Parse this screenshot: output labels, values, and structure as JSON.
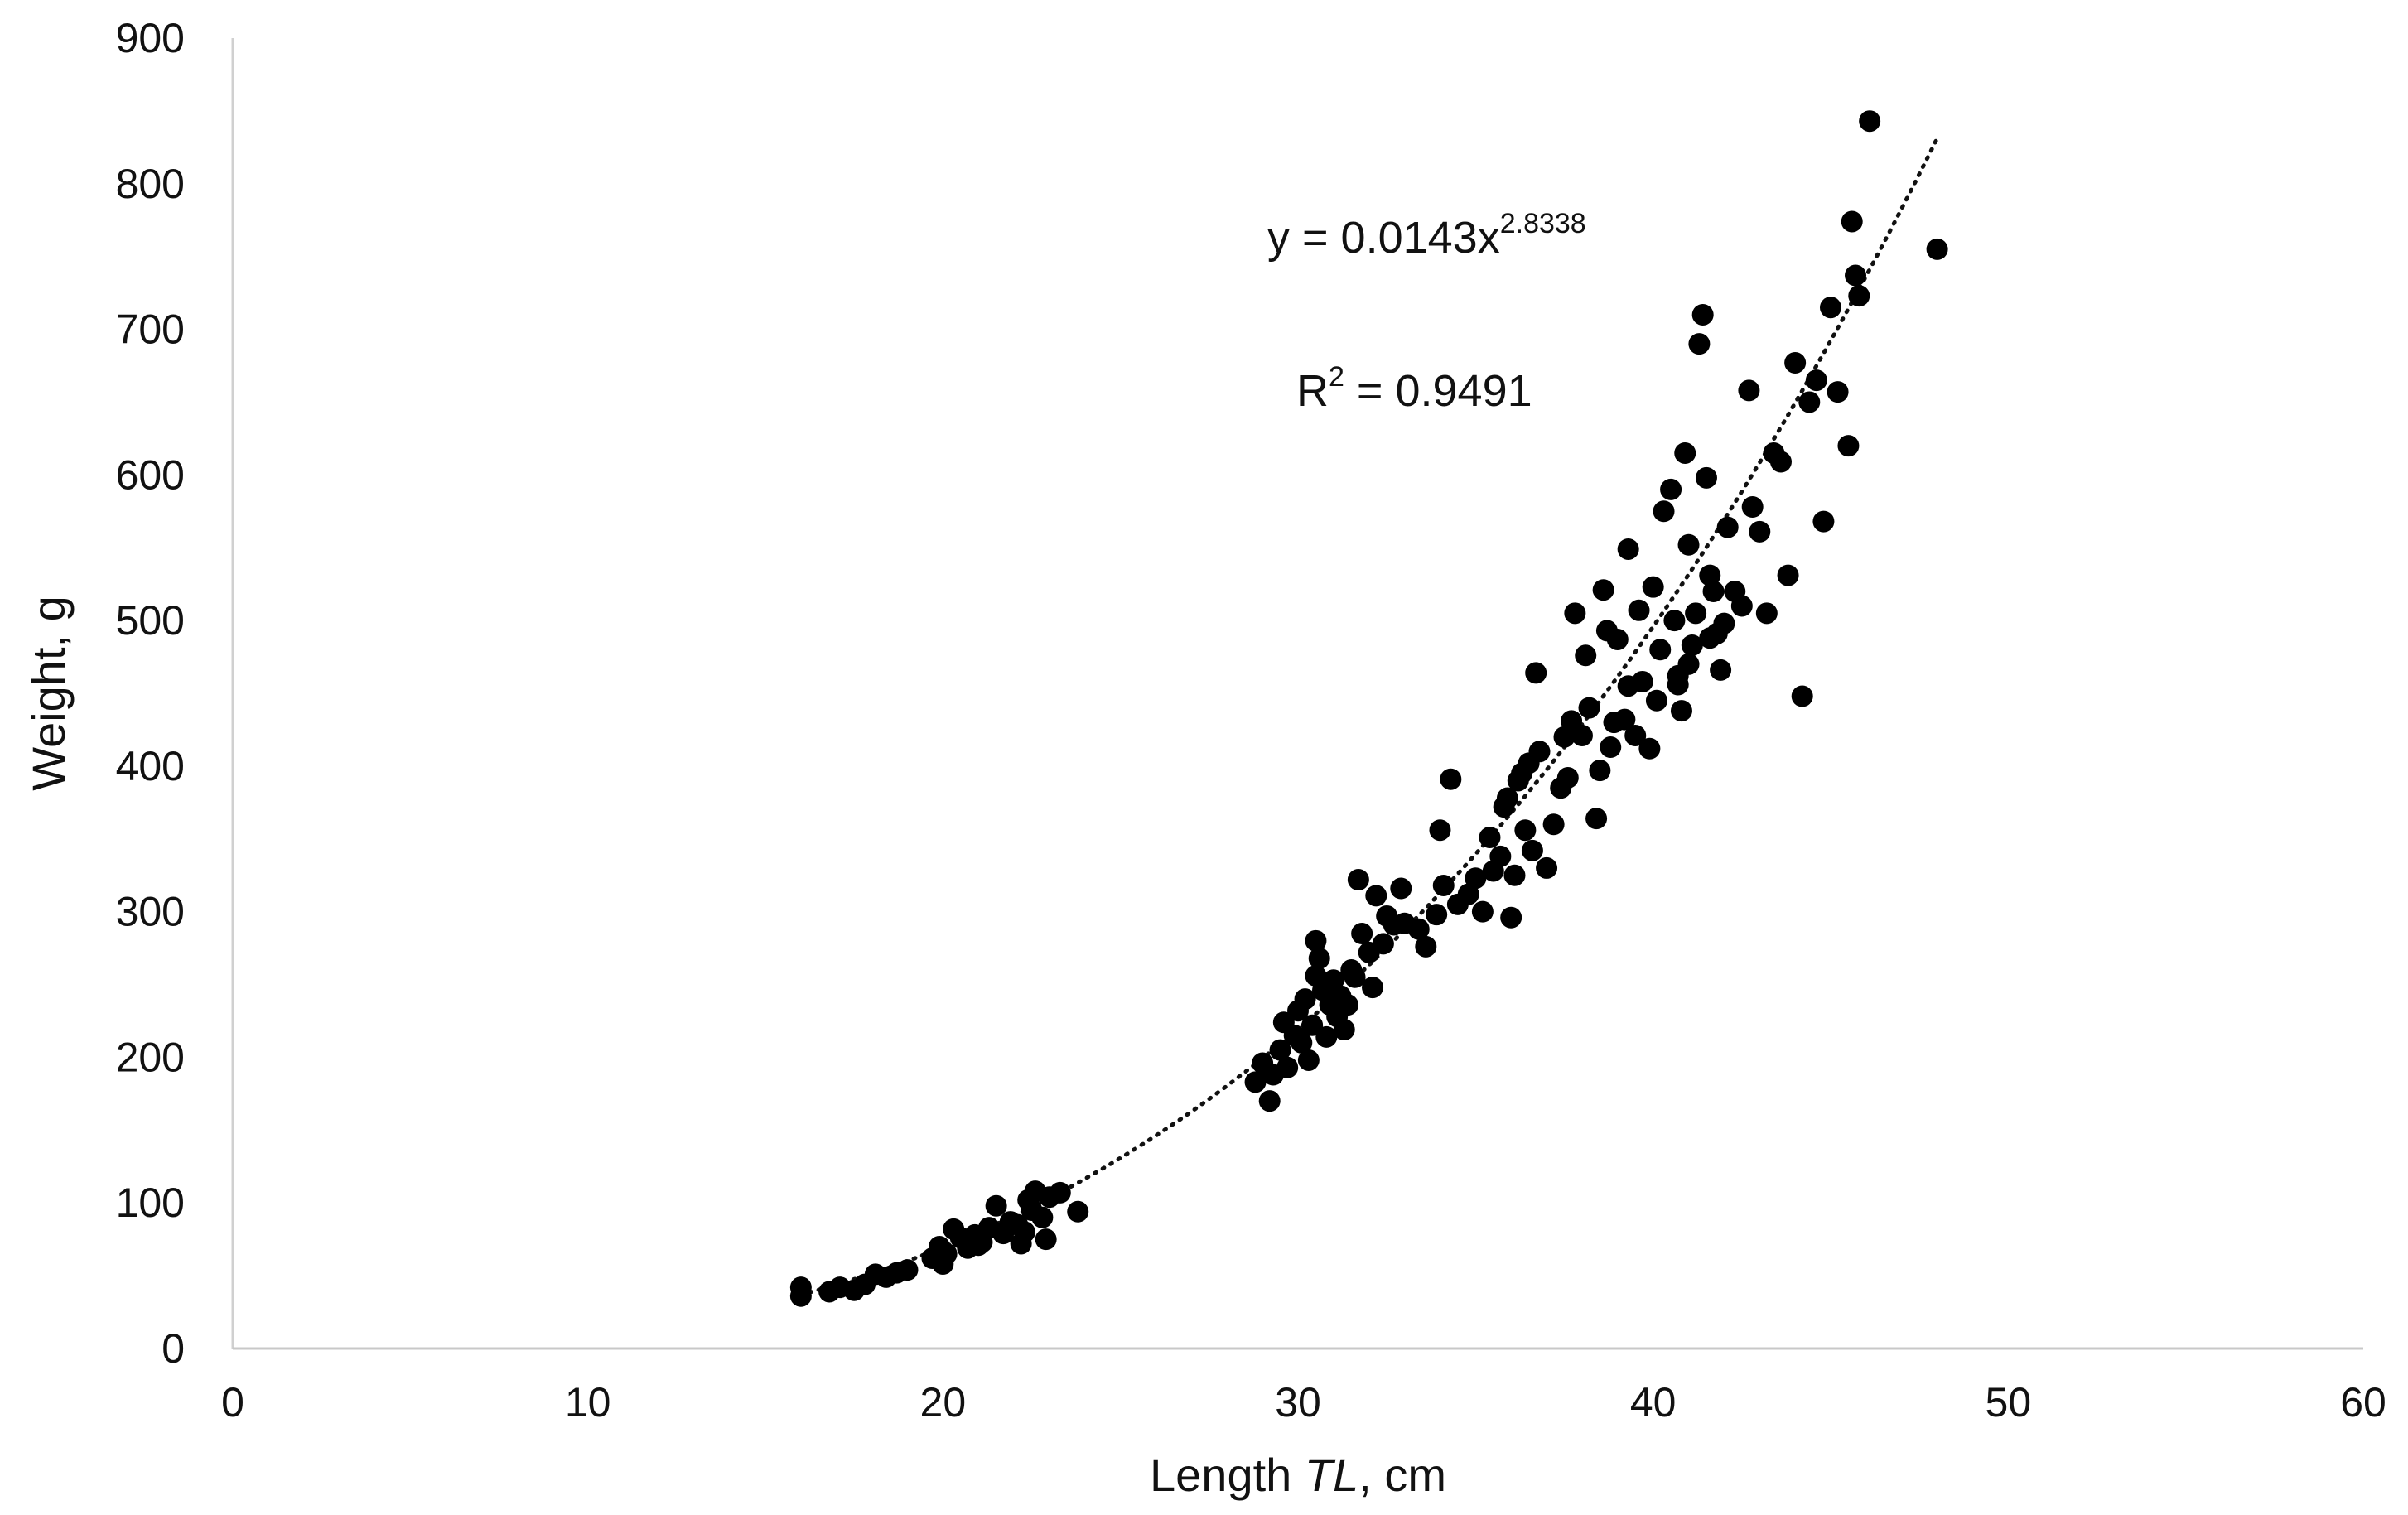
{
  "chart_data": {
    "type": "scatter",
    "title": "",
    "xlabel": {
      "prefix": "Length ",
      "italic": "TL",
      "suffix": ", cm"
    },
    "ylabel": "Weight, g",
    "xlim": [
      0,
      60
    ],
    "ylim": [
      0,
      900
    ],
    "x_ticks": [
      0,
      10,
      20,
      30,
      40,
      50,
      60
    ],
    "y_ticks": [
      0,
      100,
      200,
      300,
      400,
      500,
      600,
      700,
      800,
      900
    ],
    "grid": false,
    "legend": "none",
    "marker_color": "#000000",
    "trendline": {
      "type": "power",
      "a": 0.0143,
      "b": 2.8338,
      "x_range": [
        16,
        48
      ],
      "style": "dotted",
      "equation_prefix": "y = 0.0143x",
      "equation_exponent": "2.8338",
      "r2_prefix": "R",
      "r2_exponent": "2",
      "r2_suffix": " = 0.9491"
    },
    "points": [
      [
        16,
        42
      ],
      [
        16,
        36
      ],
      [
        16.8,
        39
      ],
      [
        17.1,
        42
      ],
      [
        17.5,
        40
      ],
      [
        17.8,
        44
      ],
      [
        18.1,
        51
      ],
      [
        18.4,
        49
      ],
      [
        18.7,
        52
      ],
      [
        19.0,
        54
      ],
      [
        19.7,
        62
      ],
      [
        19.9,
        70
      ],
      [
        20.0,
        58
      ],
      [
        20.1,
        65
      ],
      [
        20.3,
        82
      ],
      [
        20.5,
        76
      ],
      [
        20.7,
        69
      ],
      [
        20.9,
        78
      ],
      [
        21.1,
        73
      ],
      [
        21.3,
        83
      ],
      [
        21.5,
        98
      ],
      [
        21.7,
        79
      ],
      [
        21.9,
        87
      ],
      [
        22.1,
        85
      ],
      [
        22.2,
        72
      ],
      [
        22.4,
        102
      ],
      [
        22.5,
        95
      ],
      [
        22.6,
        108
      ],
      [
        22.8,
        90
      ],
      [
        22.9,
        75
      ],
      [
        23.0,
        104
      ],
      [
        23.3,
        107
      ],
      [
        23.8,
        94
      ],
      [
        22.3,
        80
      ],
      [
        21.0,
        71
      ],
      [
        28.8,
        183
      ],
      [
        29.0,
        196
      ],
      [
        29.2,
        170
      ],
      [
        29.3,
        188
      ],
      [
        29.5,
        205
      ],
      [
        29.6,
        224
      ],
      [
        29.7,
        193
      ],
      [
        29.9,
        215
      ],
      [
        30.0,
        232
      ],
      [
        30.1,
        210
      ],
      [
        30.2,
        240
      ],
      [
        30.3,
        198
      ],
      [
        30.4,
        222
      ],
      [
        30.5,
        256
      ],
      [
        30.5,
        280
      ],
      [
        30.6,
        268
      ],
      [
        30.7,
        246
      ],
      [
        30.8,
        214
      ],
      [
        30.9,
        236
      ],
      [
        31.0,
        253
      ],
      [
        31.1,
        228
      ],
      [
        31.2,
        242
      ],
      [
        31.3,
        219
      ],
      [
        31.4,
        236
      ],
      [
        31.5,
        260
      ],
      [
        31.6,
        255
      ],
      [
        31.7,
        322
      ],
      [
        31.8,
        285
      ],
      [
        32.0,
        272
      ],
      [
        32.1,
        248
      ],
      [
        32.2,
        311
      ],
      [
        32.4,
        278
      ],
      [
        32.5,
        297
      ],
      [
        32.7,
        291
      ],
      [
        32.9,
        316
      ],
      [
        33.0,
        292
      ],
      [
        33.4,
        288
      ],
      [
        33.6,
        276
      ],
      [
        33.9,
        298
      ],
      [
        34.0,
        356
      ],
      [
        34.1,
        318
      ],
      [
        34.3,
        391
      ],
      [
        34.5,
        305
      ],
      [
        34.8,
        312
      ],
      [
        35.0,
        323
      ],
      [
        35.2,
        300
      ],
      [
        35.4,
        351
      ],
      [
        35.5,
        328
      ],
      [
        35.7,
        338
      ],
      [
        35.9,
        378
      ],
      [
        36.0,
        296
      ],
      [
        36.1,
        325
      ],
      [
        36.2,
        390
      ],
      [
        36.4,
        356
      ],
      [
        36.5,
        402
      ],
      [
        36.6,
        342
      ],
      [
        36.7,
        464
      ],
      [
        36.8,
        410
      ],
      [
        37.0,
        330
      ],
      [
        37.2,
        360
      ],
      [
        37.4,
        385
      ],
      [
        37.6,
        392
      ],
      [
        37.7,
        431
      ],
      [
        37.8,
        505
      ],
      [
        38.0,
        421
      ],
      [
        38.1,
        476
      ],
      [
        38.2,
        440
      ],
      [
        38.4,
        364
      ],
      [
        38.5,
        397
      ],
      [
        38.6,
        521
      ],
      [
        38.7,
        493
      ],
      [
        38.8,
        413
      ],
      [
        39.0,
        487
      ],
      [
        39.2,
        432
      ],
      [
        39.3,
        549
      ],
      [
        39.5,
        421
      ],
      [
        39.6,
        507
      ],
      [
        39.7,
        458
      ],
      [
        39.9,
        412
      ],
      [
        40.0,
        523
      ],
      [
        40.1,
        445
      ],
      [
        40.2,
        480
      ],
      [
        40.3,
        575
      ],
      [
        40.5,
        590
      ],
      [
        40.6,
        500
      ],
      [
        40.7,
        462
      ],
      [
        40.8,
        438
      ],
      [
        40.9,
        615
      ],
      [
        41.0,
        552
      ],
      [
        41.1,
        483
      ],
      [
        41.2,
        505
      ],
      [
        41.3,
        690
      ],
      [
        41.4,
        710
      ],
      [
        41.5,
        598
      ],
      [
        41.6,
        531
      ],
      [
        41.7,
        520
      ],
      [
        41.8,
        491
      ],
      [
        41.9,
        466
      ],
      [
        42.0,
        498
      ],
      [
        42.1,
        564
      ],
      [
        42.3,
        520
      ],
      [
        42.5,
        510
      ],
      [
        42.7,
        658
      ],
      [
        42.8,
        578
      ],
      [
        43.0,
        561
      ],
      [
        43.2,
        505
      ],
      [
        43.4,
        615
      ],
      [
        43.6,
        609
      ],
      [
        43.8,
        531
      ],
      [
        44.0,
        677
      ],
      [
        44.2,
        448
      ],
      [
        44.4,
        650
      ],
      [
        44.6,
        665
      ],
      [
        44.8,
        568
      ],
      [
        45.0,
        715
      ],
      [
        45.2,
        657
      ],
      [
        45.5,
        620
      ],
      [
        45.6,
        774
      ],
      [
        45.7,
        737
      ],
      [
        45.8,
        723
      ],
      [
        46.1,
        843
      ],
      [
        48.0,
        755
      ],
      [
        41.6,
        488
      ],
      [
        40.7,
        456
      ],
      [
        41.0,
        470
      ],
      [
        39.3,
        455
      ],
      [
        38.9,
        430
      ],
      [
        37.5,
        420
      ],
      [
        36.3,
        395
      ],
      [
        35.8,
        372
      ]
    ]
  }
}
